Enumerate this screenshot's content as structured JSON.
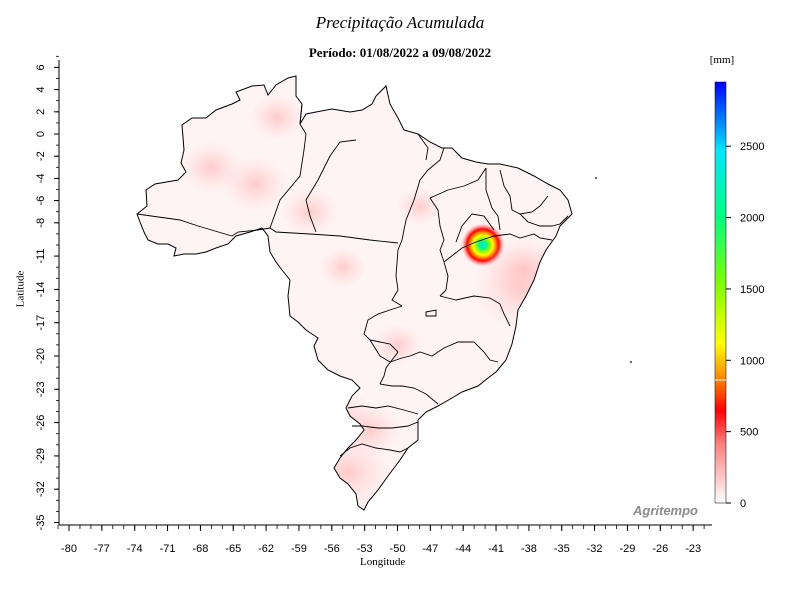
{
  "title": "Precipitação Acumulada",
  "subtitle": "Período: 01/08/2022 a 09/08/2022",
  "colorbar": {
    "unit": "[mm]",
    "ticks": [
      0,
      500,
      1000,
      1500,
      2000,
      2500
    ],
    "max": 2950
  },
  "watermark": "Agritempo",
  "axes": {
    "xlabel": "Longitude",
    "ylabel": "Latitude",
    "xticks": [
      -80,
      -77,
      -74,
      -71,
      -68,
      -65,
      -62,
      -59,
      -56,
      -53,
      -50,
      -47,
      -44,
      -41,
      -38,
      -35,
      -32,
      -29,
      -26,
      -23
    ],
    "yticks": [
      6,
      4,
      2,
      0,
      -2,
      -4,
      -6,
      -8,
      -11,
      -14,
      -17,
      -20,
      -23,
      -26,
      -29,
      -32,
      -35
    ],
    "xlim": [
      -80,
      -23
    ],
    "ylim": [
      -35,
      6
    ]
  },
  "chart_data": {
    "type": "heatmap",
    "title": "Precipitação Acumulada",
    "subtitle": "Período: 01/08/2022 a 09/08/2022",
    "xlabel": "Longitude",
    "ylabel": "Latitude",
    "xlim": [
      -80,
      -23
    ],
    "ylim": [
      -35,
      6
    ],
    "unit": "mm",
    "colorbar_range": [
      0,
      2950
    ],
    "hotspots": [
      {
        "lon": -42.2,
        "lat": -10.0,
        "value": 2700
      },
      {
        "lon": -38.8,
        "lat": -13.9,
        "value": 300
      },
      {
        "lon": -38.5,
        "lat": -12.2,
        "value": 220
      },
      {
        "lon": -54.5,
        "lat": -30.5,
        "value": 260
      },
      {
        "lon": -55.5,
        "lat": -25.8,
        "value": 220
      },
      {
        "lon": -52.5,
        "lat": -26.7,
        "value": 160
      },
      {
        "lon": -67.0,
        "lat": -3.0,
        "value": 160
      },
      {
        "lon": -63.0,
        "lat": -4.5,
        "value": 180
      },
      {
        "lon": -58.0,
        "lat": -7.0,
        "value": 140
      },
      {
        "lon": -61.0,
        "lat": 1.5,
        "value": 130
      },
      {
        "lon": -50.0,
        "lat": -19.0,
        "value": 110
      },
      {
        "lon": -55.0,
        "lat": -12.0,
        "value": 100
      },
      {
        "lon": -48.0,
        "lat": -6.5,
        "value": 90
      }
    ]
  }
}
